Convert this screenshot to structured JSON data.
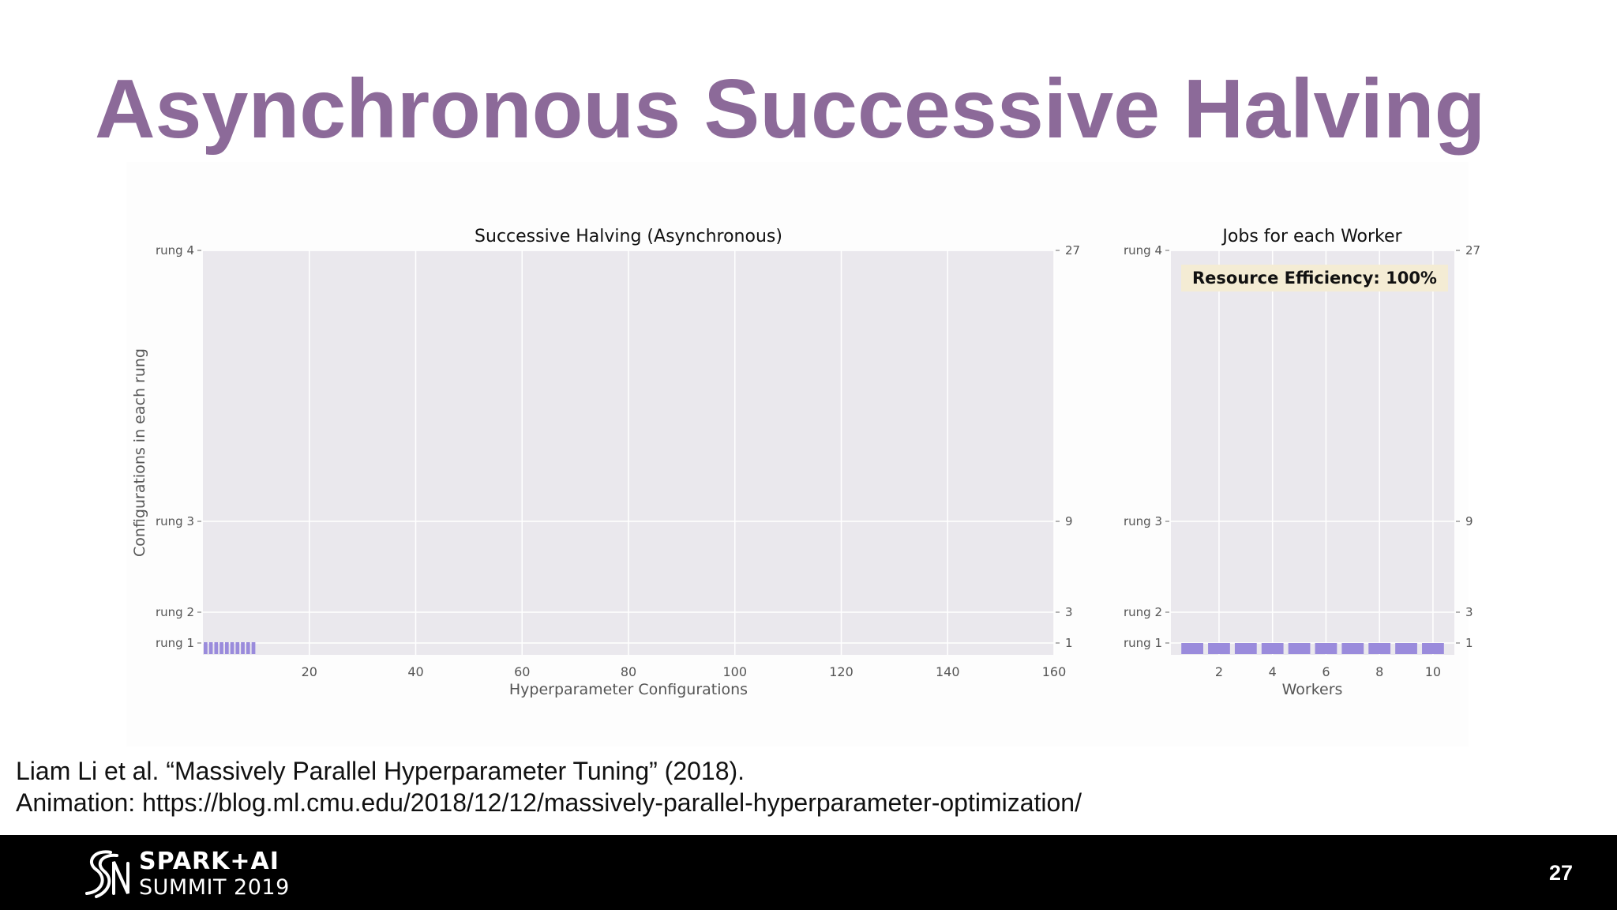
{
  "slide": {
    "title": "Asynchronous Successive Halving",
    "citation_line1": "Liam Li et al. “Massively Parallel Hyperparameter Tuning” (2018).",
    "citation_line2": "Animation: https://blog.ml.cmu.edu/2018/12/12/massively-parallel-hyperparameter-optimization/",
    "page_number": "27"
  },
  "footer": {
    "logo_line1": "SPARK+AI",
    "logo_line2": "SUMMIT 2019"
  },
  "colors": {
    "title": "#8c6a99",
    "plot_background": "#eae8ed",
    "bar": "#9a8bdc",
    "annotation_box": "#f4ecd4"
  },
  "chart_data": [
    {
      "type": "bar",
      "title": "Successive Halving (Asynchronous)",
      "xlabel": "Hyperparameter Configurations",
      "ylabel": "Configurations in each rung",
      "xlim": [
        0,
        160
      ],
      "x_ticks": [
        "20",
        "40",
        "60",
        "80",
        "100",
        "120",
        "140",
        "160"
      ],
      "y_ticks": [
        "rung 1",
        "rung 2",
        "rung 3",
        "rung 4"
      ],
      "y2_ticks": [
        "1",
        "3",
        "9",
        "27"
      ],
      "grid": true,
      "series": [
        {
          "rung": 1,
          "configurations": [
            1,
            2,
            3,
            4,
            5,
            6,
            7,
            8,
            9,
            10
          ]
        }
      ]
    },
    {
      "type": "bar",
      "title": "Jobs for each Worker",
      "xlabel": "Workers",
      "x_ticks": [
        "2",
        "4",
        "6",
        "8",
        "10"
      ],
      "y_ticks": [
        "rung 1",
        "rung 2",
        "rung 3",
        "rung 4"
      ],
      "y2_ticks": [
        "1",
        "3",
        "9",
        "27"
      ],
      "grid": true,
      "annotation": "Resource Efficiency: 100%",
      "workers": [
        1,
        2,
        3,
        4,
        5,
        6,
        7,
        8,
        9,
        10
      ],
      "jobs_rung": [
        1,
        1,
        1,
        1,
        1,
        1,
        1,
        1,
        1,
        1
      ]
    }
  ]
}
